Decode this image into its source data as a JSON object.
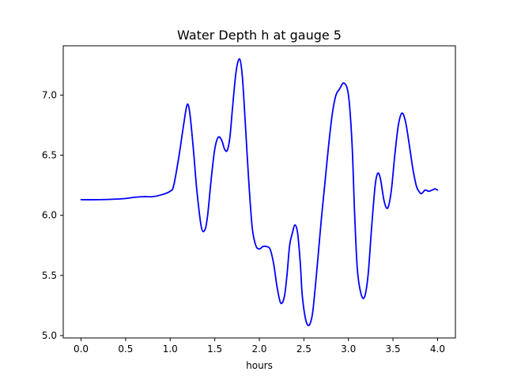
{
  "chart_data": {
    "type": "line",
    "title": "Water Depth h at gauge 5",
    "xlabel": "hours",
    "ylabel": "",
    "xlim": [
      -0.2,
      4.2
    ],
    "ylim": [
      4.98,
      7.41
    ],
    "grid": false,
    "x_ticks": [
      0.0,
      0.5,
      1.0,
      1.5,
      2.0,
      2.5,
      3.0,
      3.5,
      4.0
    ],
    "x_tick_labels": [
      "0.0",
      "0.5",
      "1.0",
      "1.5",
      "2.0",
      "2.5",
      "3.0",
      "3.5",
      "4.0"
    ],
    "y_ticks": [
      5.0,
      5.5,
      6.0,
      6.5,
      7.0
    ],
    "y_tick_labels": [
      "5.0",
      "5.5",
      "6.0",
      "6.5",
      "7.0"
    ],
    "series": [
      {
        "color": "#0000ff",
        "x": [
          0.0,
          0.2,
          0.4,
          0.5,
          0.6,
          0.7,
          0.8,
          0.9,
          1.0,
          1.04,
          1.1,
          1.15,
          1.19,
          1.22,
          1.26,
          1.3,
          1.35,
          1.39,
          1.42,
          1.46,
          1.5,
          1.54,
          1.58,
          1.61,
          1.64,
          1.67,
          1.7,
          1.74,
          1.78,
          1.81,
          1.84,
          1.88,
          1.92,
          1.96,
          2.0,
          2.04,
          2.08,
          2.12,
          2.16,
          2.2,
          2.24,
          2.28,
          2.31,
          2.34,
          2.37,
          2.4,
          2.43,
          2.46,
          2.48,
          2.51,
          2.54,
          2.57,
          2.6,
          2.64,
          2.67,
          2.7,
          2.74,
          2.78,
          2.82,
          2.86,
          2.9,
          2.95,
          3.0,
          3.04,
          3.07,
          3.1,
          3.14,
          3.18,
          3.22,
          3.26,
          3.3,
          3.33,
          3.36,
          3.4,
          3.44,
          3.48,
          3.52,
          3.56,
          3.6,
          3.64,
          3.68,
          3.72,
          3.76,
          3.79,
          3.82,
          3.86,
          3.9,
          3.94,
          3.97,
          4.0
        ],
        "y": [
          6.13,
          6.13,
          6.135,
          6.14,
          6.15,
          6.155,
          6.155,
          6.17,
          6.2,
          6.25,
          6.5,
          6.75,
          6.92,
          6.85,
          6.55,
          6.2,
          5.9,
          5.88,
          6.0,
          6.3,
          6.55,
          6.65,
          6.62,
          6.55,
          6.54,
          6.65,
          6.9,
          7.2,
          7.3,
          7.15,
          6.8,
          6.3,
          5.9,
          5.75,
          5.72,
          5.74,
          5.74,
          5.72,
          5.6,
          5.4,
          5.27,
          5.32,
          5.5,
          5.75,
          5.85,
          5.92,
          5.85,
          5.6,
          5.35,
          5.17,
          5.09,
          5.1,
          5.2,
          5.5,
          5.75,
          6.0,
          6.3,
          6.6,
          6.85,
          7.0,
          7.05,
          7.1,
          7.0,
          6.6,
          6.0,
          5.55,
          5.35,
          5.32,
          5.5,
          5.9,
          6.25,
          6.35,
          6.3,
          6.12,
          6.06,
          6.2,
          6.5,
          6.75,
          6.85,
          6.78,
          6.6,
          6.4,
          6.25,
          6.2,
          6.18,
          6.21,
          6.2,
          6.21,
          6.22,
          6.21
        ]
      }
    ]
  }
}
